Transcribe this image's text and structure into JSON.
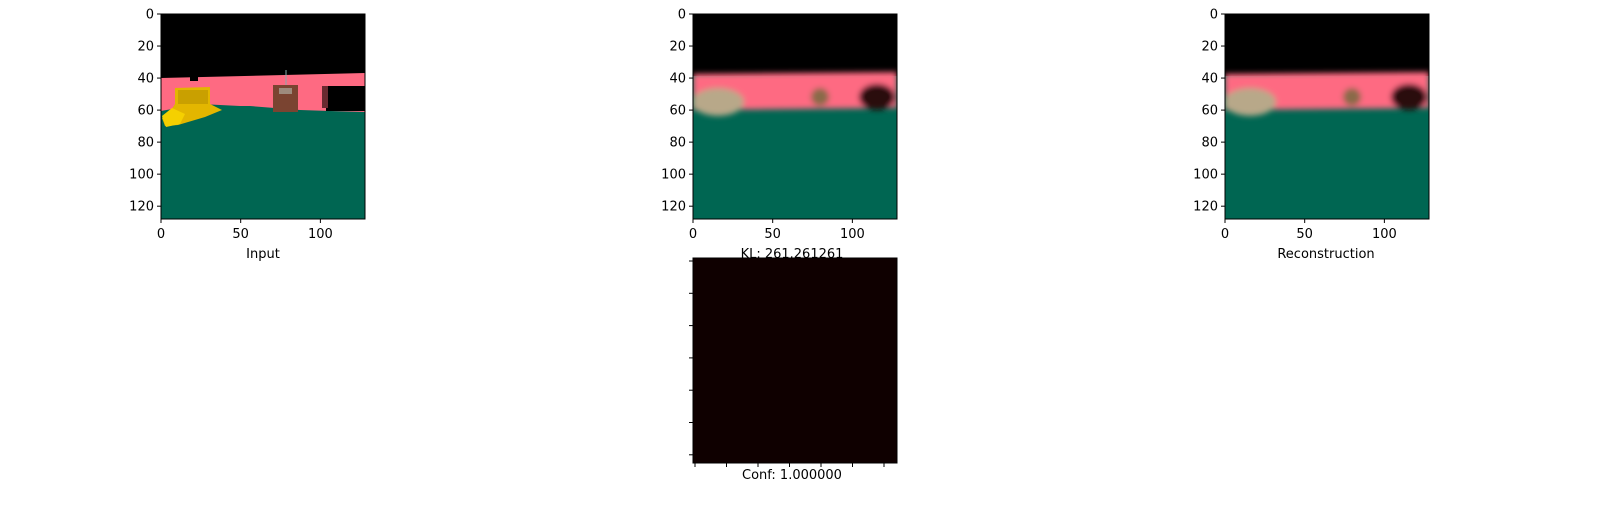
{
  "chart_data": [
    {
      "type": "image",
      "xlabel": "Input",
      "title": "",
      "x_ticks": [
        0,
        50,
        100
      ],
      "y_ticks": [
        0,
        20,
        40,
        60,
        80,
        100,
        120
      ],
      "xlim": [
        0,
        128
      ],
      "ylim": [
        128,
        0
      ],
      "content": "rendered 3D scene: black sky, pink wall, green floor, yellow object, brown crate, dark object"
    },
    {
      "type": "image",
      "xlabel": "KL: 261.261261",
      "title": "",
      "x_ticks": [
        0,
        50,
        100
      ],
      "y_ticks": [
        0,
        20,
        40,
        60,
        80,
        100,
        120
      ],
      "xlim": [
        0,
        128
      ],
      "ylim": [
        128,
        0
      ],
      "content": "blurry reconstruction: black sky, pink wall, green floor, blurred objects"
    },
    {
      "type": "image",
      "xlabel": "Reconstruction",
      "title": "",
      "x_ticks": [
        0,
        50,
        100
      ],
      "y_ticks": [
        0,
        20,
        40,
        60,
        80,
        100,
        120
      ],
      "xlim": [
        0,
        128
      ],
      "ylim": [
        128,
        0
      ],
      "content": "blurry reconstruction: black sky, pink wall, green floor, blurred objects"
    },
    {
      "type": "heatmap",
      "xlabel": "Conf: 1.000000",
      "title": "",
      "values": [
        [
          1.0
        ]
      ],
      "fill_color": "#0f0000",
      "tick_labels_visible": false
    }
  ],
  "colors": {
    "sky": "#000000",
    "wall": "#fe6a82",
    "floor": "#006652",
    "yellow_object": "#f0c400",
    "crate": "#7a4431",
    "heatmap": "#0f0000"
  }
}
